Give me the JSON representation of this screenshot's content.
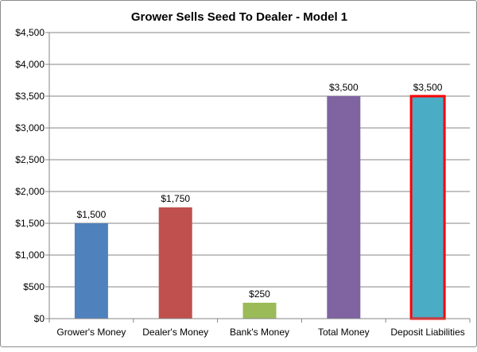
{
  "chart_data": {
    "type": "bar",
    "title": "Grower Sells Seed To Dealer - Model 1",
    "xlabel": "",
    "ylabel": "",
    "ylim": [
      0,
      4500
    ],
    "ytick_step": 500,
    "y_tick_labels": [
      "$0",
      "$500",
      "$1,000",
      "$1,500",
      "$2,000",
      "$2,500",
      "$3,000",
      "$3,500",
      "$4,000",
      "$4,500"
    ],
    "grid": true,
    "legend": "none",
    "categories": [
      "Grower's Money",
      "Dealer's Money",
      "Bank's Money",
      "Total Money",
      "Deposit Liabilities"
    ],
    "values": [
      1500,
      1750,
      250,
      3500,
      3500
    ],
    "data_labels": [
      "$1,500",
      "$1,750",
      "$250",
      "$3,500",
      "$3,500"
    ],
    "colors": [
      "#4f81bd",
      "#c0504d",
      "#9bbb59",
      "#8064a2",
      "#4bacc6"
    ],
    "highlight": {
      "category": "Deposit Liabilities",
      "border_color": "#ff0000"
    }
  }
}
